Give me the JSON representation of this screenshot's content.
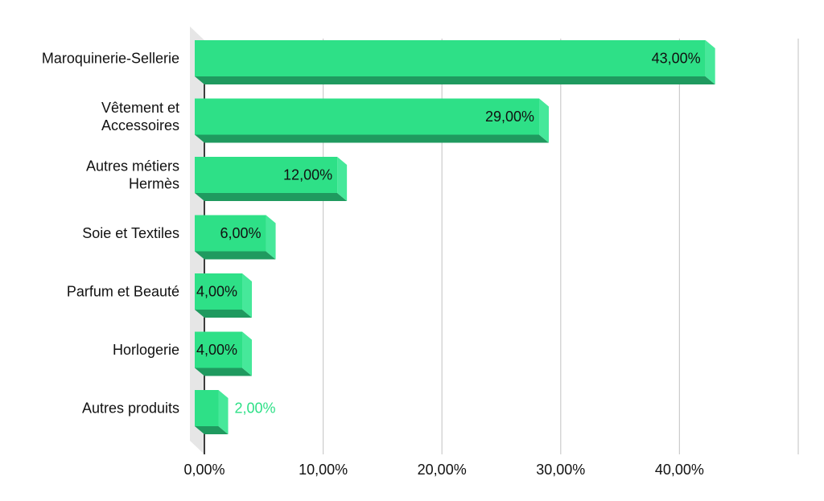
{
  "chart_data": {
    "type": "bar",
    "orientation": "horizontal",
    "style": "3d",
    "categories": [
      [
        "Maroquinerie-Sellerie"
      ],
      [
        "Vêtement et",
        "Accessoires"
      ],
      [
        "Autres métiers",
        "Hermès"
      ],
      [
        "Soie et Textiles"
      ],
      [
        "Parfum et Beauté"
      ],
      [
        "Horlogerie"
      ],
      [
        "Autres produits"
      ]
    ],
    "values": [
      43,
      29,
      12,
      6,
      4,
      4,
      2
    ],
    "data_labels": [
      "43,00%",
      "29,00%",
      "12,00%",
      "6,00%",
      "4,00%",
      "4,00%",
      "2,00%"
    ],
    "xlim": [
      0,
      50
    ],
    "x_ticks": [
      0,
      10,
      20,
      30,
      40
    ],
    "x_tick_labels": [
      "0,00%",
      "10,00%",
      "20,00%",
      "30,00%",
      "40,00%"
    ],
    "grid": true,
    "title": "",
    "xlabel": "",
    "ylabel": "",
    "colors": {
      "bar_face": "#2ee087",
      "bar_side": "#46e89a",
      "bar_bottom": "#1f9a5f",
      "label_inside": "#111111",
      "label_outside": "#2ee087",
      "grid": "#cccccc",
      "floor": "#e6e6e6"
    }
  }
}
